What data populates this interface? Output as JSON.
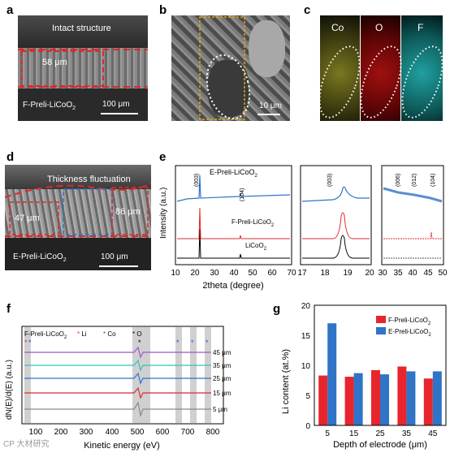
{
  "panels": {
    "a": {
      "letter": "a",
      "caption_top": "Intact structure",
      "thickness": "58 μm",
      "material": "F-Preli-LiCoO",
      "material_sub": "2",
      "scalebar": "100 μm"
    },
    "b": {
      "letter": "b",
      "scalebar": "10 μm"
    },
    "c": {
      "letter": "c",
      "maps": [
        "Co",
        "O",
        "F"
      ],
      "map_colors": [
        "#d8d43a",
        "#e4262b",
        "#33c7c3"
      ]
    },
    "d": {
      "letter": "d",
      "caption_top": "Thickness fluctuation",
      "thickness_left": "47 μm",
      "thickness_right": "86 μm",
      "material": "E-Preli-LiCoO",
      "material_sub": "2",
      "scalebar": "100 μm"
    },
    "e": {
      "letter": "e",
      "ylabel": "Intensity (a.u.)",
      "xlabel": "2theta (degree)",
      "series_labels": [
        {
          "text": "E-Preli-LiCoO",
          "sub": "2",
          "color": "#2f74c6"
        },
        {
          "text": "F-Preli-LiCoO",
          "sub": "2",
          "color": "#e0282c"
        },
        {
          "text": "LiCoO",
          "sub": "2",
          "color": "#000000"
        }
      ],
      "peak_labels": [
        "(003)",
        "(104)"
      ],
      "xticks_main": [
        "10",
        "20",
        "30",
        "40",
        "50",
        "60",
        "70"
      ],
      "inset1_label": "(003)",
      "xticks_inset1": [
        "17",
        "18",
        "19",
        "20"
      ],
      "inset2_labels": [
        "(006)",
        "(012)",
        "(104)"
      ],
      "xticks_inset2": [
        "30",
        "35",
        "40",
        "45",
        "50"
      ]
    },
    "f": {
      "letter": "f",
      "ylabel": "dN(E)/d(E) (a.u.)",
      "xlabel": "Kinetic energy (eV)",
      "legend_title": "F-Preli-LiCoO",
      "legend_title_sub": "2",
      "legend_items": [
        {
          "star": "*",
          "text": "Li",
          "color": "#e0282c"
        },
        {
          "star": "*",
          "text": "Co",
          "color": "#2f4fd0"
        },
        {
          "star": "*",
          "text": "O",
          "color": "#000000"
        }
      ],
      "depth_labels": [
        "45 μm",
        "35 μm",
        "25 μm",
        "15 μm",
        "5 μm"
      ],
      "line_colors": [
        "#9b59c6",
        "#36c2b4",
        "#2f74c6",
        "#e0282c",
        "#8a8a8a"
      ],
      "xticks": [
        "100",
        "200",
        "300",
        "400",
        "500",
        "600",
        "700",
        "800"
      ]
    },
    "g": {
      "letter": "g"
    }
  },
  "chart_data": {
    "type": "bar",
    "title": "",
    "categories": [
      "5",
      "15",
      "25",
      "35",
      "45"
    ],
    "series": [
      {
        "name": "F-Preli-LiCoO2",
        "values": [
          8.3,
          8.1,
          9.2,
          9.8,
          7.8
        ],
        "color": "#e8252c"
      },
      {
        "name": "E-Preli-LiCoO2",
        "values": [
          17.0,
          8.7,
          8.5,
          9.0,
          9.0
        ],
        "color": "#2f74c6"
      }
    ],
    "xlabel": "Depth of electrode (μm)",
    "ylabel": "Li content (at.%)",
    "ylim": [
      0,
      20
    ],
    "yticks": [
      "0",
      "5",
      "10",
      "15",
      "20"
    ],
    "legend": "top-right"
  },
  "watermark": "CP 大材研究"
}
